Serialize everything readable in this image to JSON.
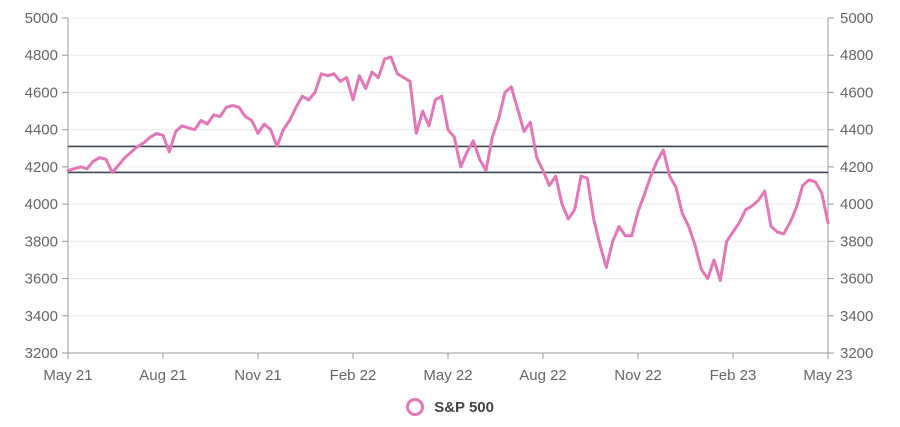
{
  "chart_data": {
    "type": "line",
    "title": "",
    "xlabel": "",
    "ylabel": "",
    "ylim": [
      3200,
      5000
    ],
    "y_ticks": [
      3200,
      3400,
      3600,
      3800,
      4000,
      4200,
      4400,
      4600,
      4800,
      5000
    ],
    "y_tick_labels": [
      "3200",
      "3400",
      "3600",
      "3800",
      "4000",
      "4200",
      "4400",
      "4600",
      "4800",
      "5000"
    ],
    "x_tick_labels": [
      "May 21",
      "Aug 21",
      "Nov 21",
      "Feb 22",
      "May 22",
      "Aug 22",
      "Nov 22",
      "Feb 23",
      "May 23"
    ],
    "grid": "horizontal",
    "dual_y_axis": true,
    "reference_lines": [
      4310,
      4170
    ],
    "reference_line_color": "#3d4654",
    "legend_position": "bottom-center",
    "series": [
      {
        "name": "S&P 500",
        "color": "#e377b8",
        "x": [
          0,
          0.2,
          0.4,
          0.6,
          0.8,
          1.0,
          1.2,
          1.4,
          1.6,
          1.8,
          2.0,
          2.2,
          2.4,
          2.6,
          2.8,
          3.0,
          3.2,
          3.4,
          3.6,
          3.8,
          4.0,
          4.2,
          4.4,
          4.6,
          4.8,
          5.0,
          5.2,
          5.4,
          5.6,
          5.8,
          6.0,
          6.2,
          6.4,
          6.6,
          6.8,
          7.0,
          7.2,
          7.4,
          7.6,
          7.8,
          8.0,
          8.2,
          8.4,
          8.6,
          8.8,
          9.0,
          9.2,
          9.4,
          9.6,
          9.8,
          10.0,
          10.2,
          10.4,
          10.6,
          10.8,
          11.0,
          11.2,
          11.4,
          11.6,
          11.8,
          12.0,
          12.2,
          12.4,
          12.6,
          12.8,
          13.0,
          13.2,
          13.4,
          13.6,
          13.8,
          14.0,
          14.2,
          14.4,
          14.6,
          14.8,
          15.0,
          15.2,
          15.4,
          15.6,
          15.8,
          16.0,
          16.2,
          16.4,
          16.6,
          16.8,
          17.0,
          17.2,
          17.4,
          17.6,
          17.8,
          18.0,
          18.2,
          18.4,
          18.6,
          18.8,
          19.0,
          19.2,
          19.4,
          19.6,
          19.8,
          20.0,
          20.2,
          20.4,
          20.6,
          20.8,
          21.0,
          21.2,
          21.4,
          21.6,
          21.8,
          22.0,
          22.2,
          22.4,
          22.6,
          22.8,
          23.0,
          23.2,
          23.4,
          23.6,
          23.8,
          24.0
        ],
        "values": [
          4180,
          4190,
          4200,
          4190,
          4230,
          4250,
          4240,
          4170,
          4210,
          4250,
          4280,
          4310,
          4330,
          4360,
          4380,
          4370,
          4280,
          4390,
          4420,
          4410,
          4400,
          4450,
          4430,
          4480,
          4470,
          4520,
          4530,
          4520,
          4470,
          4450,
          4380,
          4430,
          4400,
          4310,
          4400,
          4450,
          4520,
          4580,
          4560,
          4600,
          4700,
          4690,
          4700,
          4660,
          4680,
          4560,
          4690,
          4620,
          4710,
          4680,
          4780,
          4790,
          4700,
          4680,
          4660,
          4380,
          4500,
          4420,
          4560,
          4580,
          4400,
          4360,
          4200,
          4280,
          4340,
          4240,
          4180,
          4360,
          4460,
          4600,
          4630,
          4510,
          4390,
          4440,
          4250,
          4180,
          4100,
          4150,
          4000,
          3920,
          3970,
          4150,
          4140,
          3920,
          3780,
          3660,
          3800,
          3880,
          3830,
          3830,
          3960,
          4050,
          4150,
          4230,
          4290,
          4150,
          4090,
          3950,
          3880,
          3780,
          3650,
          3600,
          3700,
          3590,
          3800,
          3850,
          3900,
          3970,
          3990,
          4020,
          4070,
          3880,
          3850,
          3840,
          3900,
          3980,
          4100,
          4130,
          4120,
          4060,
          3900
        ]
      }
    ]
  }
}
